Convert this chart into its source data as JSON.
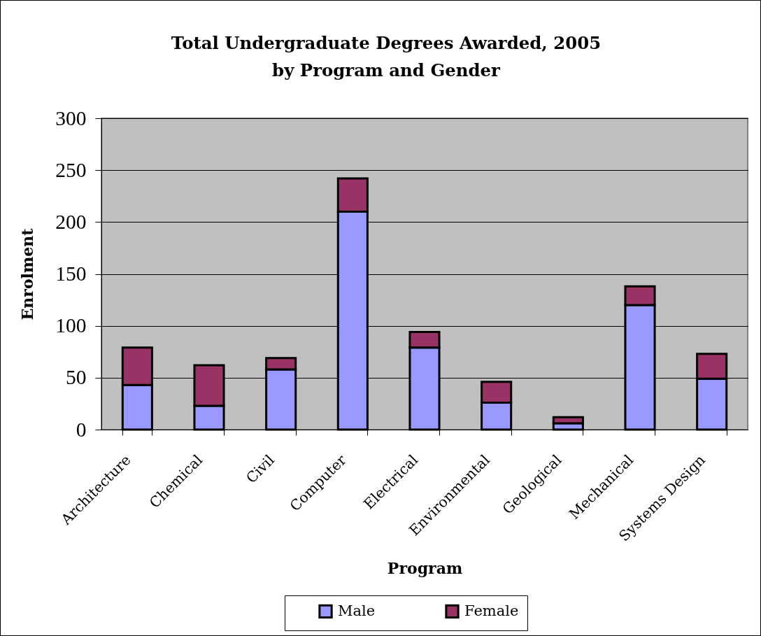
{
  "chart_data": {
    "type": "bar",
    "title": "Total Undergraduate Degrees Awarded, 2005\nby Program and Gender",
    "xlabel": "Program",
    "ylabel": "Enrolment",
    "categories": [
      "Architecture",
      "Chemical",
      "Civil",
      "Computer",
      "Electrical",
      "Environmental",
      "Geological",
      "Mechanical",
      "Systems Design"
    ],
    "series": [
      {
        "name": "Male",
        "color": "#9999ff",
        "values": [
          43,
          23,
          58,
          210,
          79,
          26,
          6,
          120,
          49
        ]
      },
      {
        "name": "Female",
        "color": "#993366",
        "values": [
          36,
          39,
          11,
          32,
          15,
          20,
          6,
          18,
          24
        ]
      }
    ],
    "stacked": true,
    "ylim": [
      0,
      300
    ],
    "yticks": [
      0,
      50,
      100,
      150,
      200,
      250,
      300
    ],
    "grid": "y",
    "legend": "bottom"
  }
}
